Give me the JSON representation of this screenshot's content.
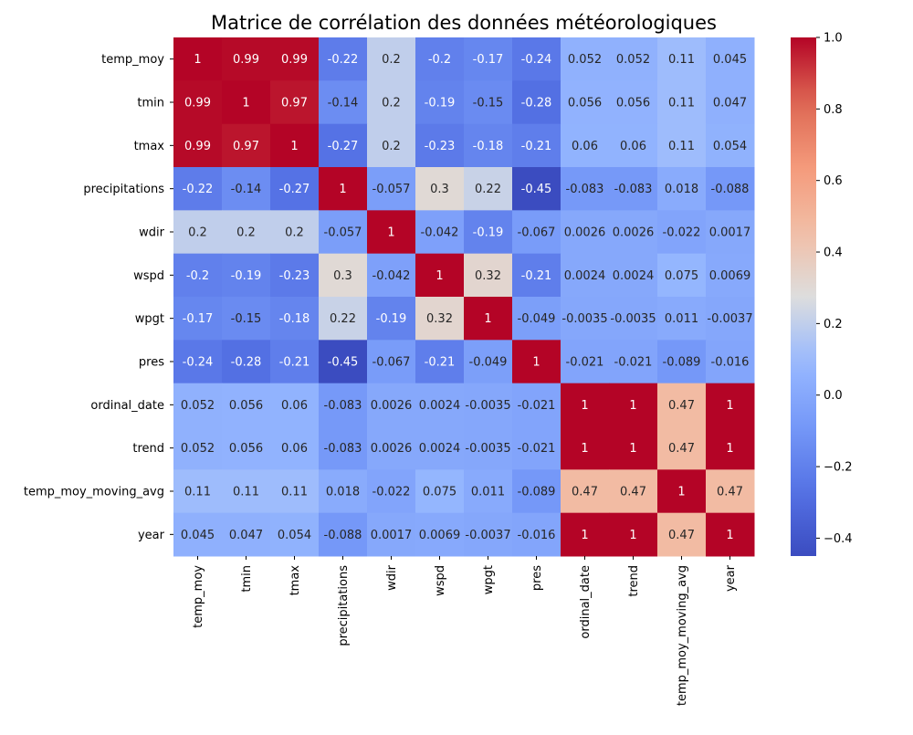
{
  "chart_data": {
    "type": "heatmap",
    "title": "Matrice de corrélation des données météorologiques",
    "xlabel": "",
    "ylabel": "",
    "colormap": "coolwarm",
    "vmin": -0.45,
    "vmax": 1.0,
    "annotate": true,
    "labels": [
      "temp_moy",
      "tmin",
      "tmax",
      "precipitations",
      "wdir",
      "wspd",
      "wpgt",
      "pres",
      "ordinal_date",
      "trend",
      "temp_moy_moving_avg",
      "year"
    ],
    "values": [
      [
        1,
        0.99,
        0.99,
        -0.22,
        0.2,
        -0.2,
        -0.17,
        -0.24,
        0.052,
        0.052,
        0.11,
        0.045
      ],
      [
        0.99,
        1,
        0.97,
        -0.14,
        0.2,
        -0.19,
        -0.15,
        -0.28,
        0.056,
        0.056,
        0.11,
        0.047
      ],
      [
        0.99,
        0.97,
        1,
        -0.27,
        0.2,
        -0.23,
        -0.18,
        -0.21,
        0.06,
        0.06,
        0.11,
        0.054
      ],
      [
        -0.22,
        -0.14,
        -0.27,
        1,
        -0.057,
        0.3,
        0.22,
        -0.45,
        -0.083,
        -0.083,
        0.018,
        -0.088
      ],
      [
        0.2,
        0.2,
        0.2,
        -0.057,
        1,
        -0.042,
        -0.19,
        -0.067,
        0.0026,
        0.0026,
        -0.022,
        0.0017
      ],
      [
        -0.2,
        -0.19,
        -0.23,
        0.3,
        -0.042,
        1,
        0.32,
        -0.21,
        0.0024,
        0.0024,
        0.075,
        0.0069
      ],
      [
        -0.17,
        -0.15,
        -0.18,
        0.22,
        -0.19,
        0.32,
        1,
        -0.049,
        -0.0035,
        -0.0035,
        0.011,
        -0.0037
      ],
      [
        -0.24,
        -0.28,
        -0.21,
        -0.45,
        -0.067,
        -0.21,
        -0.049,
        1,
        -0.021,
        -0.021,
        -0.089,
        -0.016
      ],
      [
        0.052,
        0.056,
        0.06,
        -0.083,
        0.0026,
        0.0024,
        -0.0035,
        -0.021,
        1,
        1,
        0.47,
        1
      ],
      [
        0.052,
        0.056,
        0.06,
        -0.083,
        0.0026,
        0.0024,
        -0.0035,
        -0.021,
        1,
        1,
        0.47,
        1
      ],
      [
        0.11,
        0.11,
        0.11,
        0.018,
        -0.022,
        0.075,
        0.011,
        -0.089,
        0.47,
        0.47,
        1,
        0.47
      ],
      [
        0.045,
        0.047,
        0.054,
        -0.088,
        0.0017,
        0.0069,
        -0.0037,
        -0.016,
        1,
        1,
        0.47,
        1
      ]
    ],
    "colorbar": {
      "ticks": [
        -0.4,
        -0.2,
        0.0,
        0.2,
        0.4,
        0.6,
        0.8,
        1.0
      ],
      "tick_labels": [
        "−0.4",
        "−0.2",
        "0.0",
        "0.2",
        "0.4",
        "0.6",
        "0.8",
        "1.0"
      ]
    }
  }
}
